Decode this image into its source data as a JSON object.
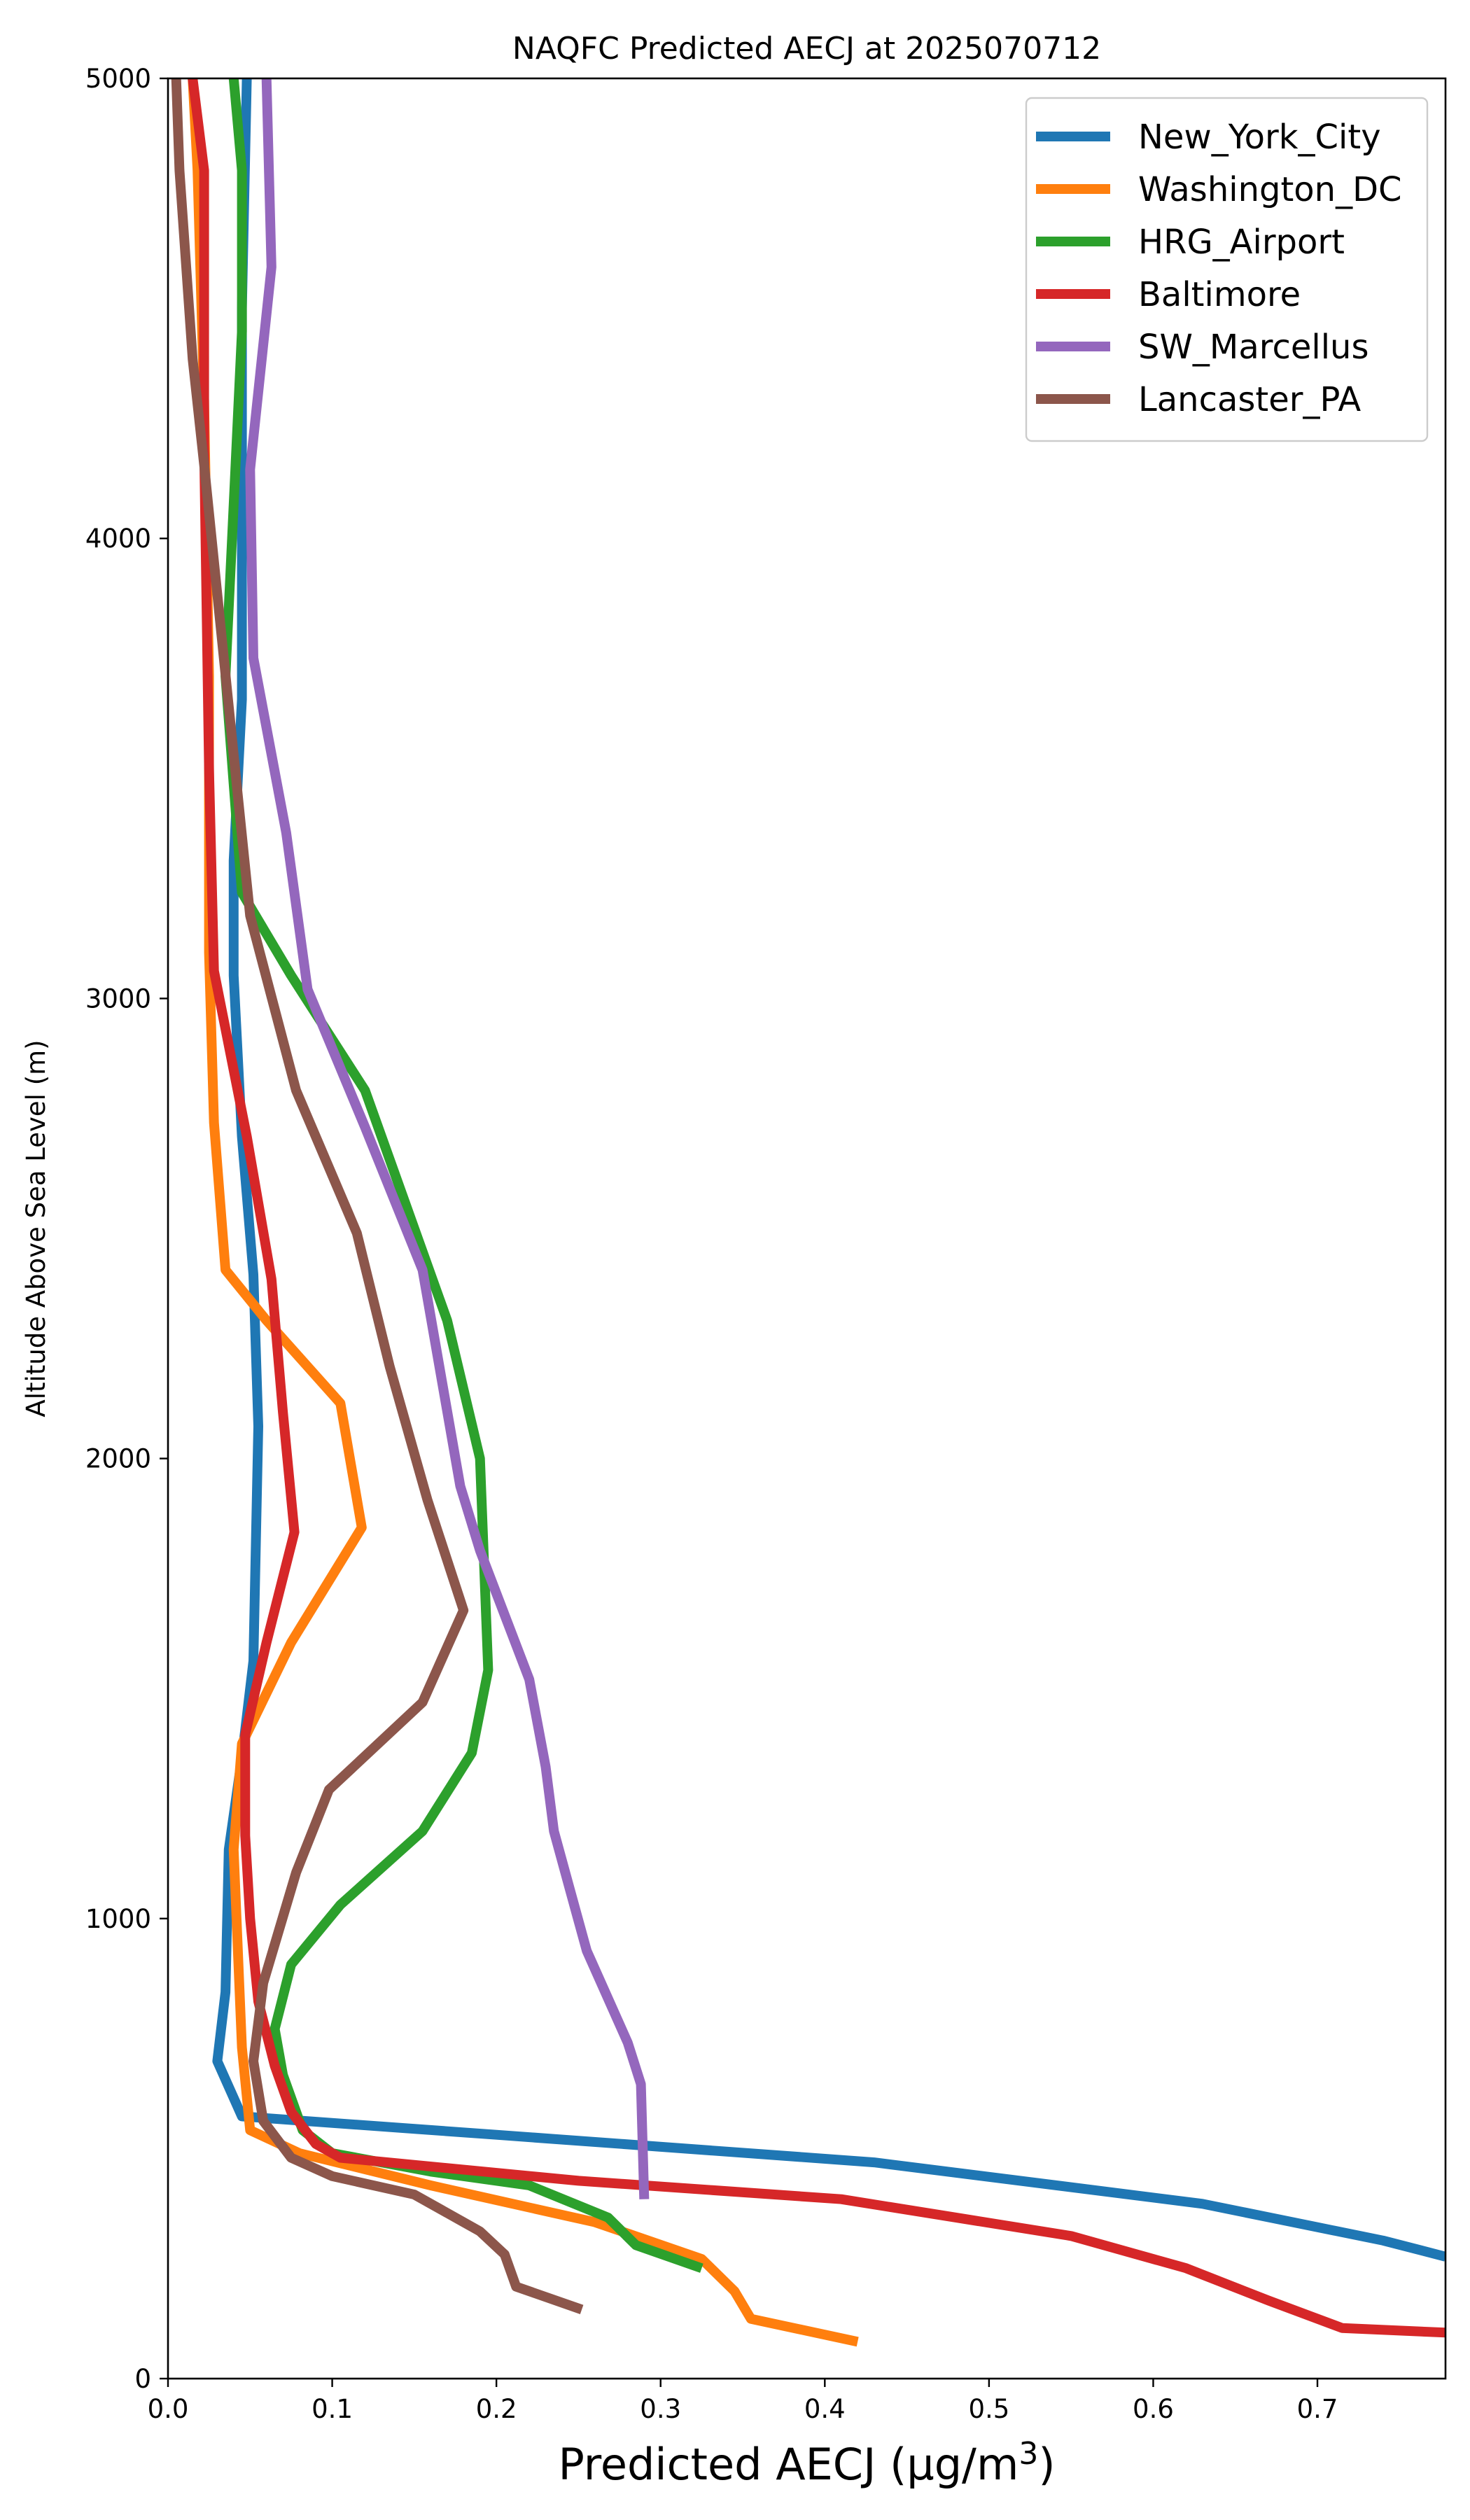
{
  "chart_data": {
    "type": "line",
    "title": "NAQFC Predicted AECJ at 2025070712",
    "xlabel": "Predicted AECJ (μg/m3)",
    "ylabel": "Altitude Above Sea Level (m)",
    "xlim": [
      0,
      0.778
    ],
    "ylim": [
      0,
      5000
    ],
    "xticks": [
      "0.0",
      "0.1",
      "0.2",
      "0.3",
      "0.4",
      "0.5",
      "0.6",
      "0.7"
    ],
    "yticks": [
      "0",
      "1000",
      "2000",
      "3000",
      "4000",
      "5000"
    ],
    "grid": false,
    "legend_position": "top-right",
    "series": [
      {
        "name": "New_York_City",
        "color": "#1f77b4",
        "points": [
          [
            0.778,
            265
          ],
          [
            0.74,
            300
          ],
          [
            0.63,
            380
          ],
          [
            0.43,
            470
          ],
          [
            0.2,
            530
          ],
          [
            0.045,
            570
          ],
          [
            0.03,
            690
          ],
          [
            0.035,
            840
          ],
          [
            0.037,
            1150
          ],
          [
            0.045,
            1350
          ],
          [
            0.052,
            1560
          ],
          [
            0.055,
            2070
          ],
          [
            0.052,
            2400
          ],
          [
            0.045,
            2700
          ],
          [
            0.04,
            3050
          ],
          [
            0.04,
            3300
          ],
          [
            0.045,
            3650
          ],
          [
            0.045,
            4100
          ],
          [
            0.045,
            4500
          ],
          [
            0.048,
            5000
          ]
        ]
      },
      {
        "name": "Washington_DC",
        "color": "#ff7f0e",
        "points": [
          [
            0.42,
            80
          ],
          [
            0.355,
            130
          ],
          [
            0.345,
            190
          ],
          [
            0.325,
            260
          ],
          [
            0.26,
            340
          ],
          [
            0.16,
            420
          ],
          [
            0.08,
            490
          ],
          [
            0.05,
            540
          ],
          [
            0.045,
            720
          ],
          [
            0.04,
            1150
          ],
          [
            0.045,
            1380
          ],
          [
            0.075,
            1600
          ],
          [
            0.118,
            1850
          ],
          [
            0.105,
            2120
          ],
          [
            0.06,
            2300
          ],
          [
            0.035,
            2410
          ],
          [
            0.028,
            2730
          ],
          [
            0.025,
            3100
          ],
          [
            0.025,
            3700
          ],
          [
            0.022,
            4300
          ],
          [
            0.018,
            4800
          ],
          [
            0.015,
            5000
          ]
        ]
      },
      {
        "name": "HRG_Airport",
        "color": "#2ca02c",
        "points": [
          [
            0.325,
            240
          ],
          [
            0.285,
            290
          ],
          [
            0.268,
            350
          ],
          [
            0.22,
            420
          ],
          [
            0.16,
            450
          ],
          [
            0.1,
            490
          ],
          [
            0.082,
            540
          ],
          [
            0.07,
            660
          ],
          [
            0.065,
            760
          ],
          [
            0.075,
            900
          ],
          [
            0.105,
            1030
          ],
          [
            0.155,
            1190
          ],
          [
            0.185,
            1360
          ],
          [
            0.195,
            1540
          ],
          [
            0.19,
            2000
          ],
          [
            0.17,
            2300
          ],
          [
            0.12,
            2800
          ],
          [
            0.075,
            3050
          ],
          [
            0.045,
            3230
          ],
          [
            0.035,
            3700
          ],
          [
            0.045,
            4450
          ],
          [
            0.045,
            4800
          ],
          [
            0.04,
            5000
          ]
        ]
      },
      {
        "name": "Baltimore",
        "color": "#d62728",
        "points": [
          [
            0.778,
            100
          ],
          [
            0.715,
            110
          ],
          [
            0.67,
            170
          ],
          [
            0.62,
            240
          ],
          [
            0.55,
            310
          ],
          [
            0.41,
            390
          ],
          [
            0.25,
            430
          ],
          [
            0.105,
            480
          ],
          [
            0.09,
            510
          ],
          [
            0.075,
            580
          ],
          [
            0.065,
            680
          ],
          [
            0.055,
            820
          ],
          [
            0.05,
            1000
          ],
          [
            0.047,
            1180
          ],
          [
            0.047,
            1400
          ],
          [
            0.06,
            1600
          ],
          [
            0.077,
            1840
          ],
          [
            0.07,
            2100
          ],
          [
            0.063,
            2390
          ],
          [
            0.048,
            2700
          ],
          [
            0.028,
            3060
          ],
          [
            0.025,
            3500
          ],
          [
            0.022,
            4200
          ],
          [
            0.022,
            4800
          ],
          [
            0.015,
            5000
          ]
        ]
      },
      {
        "name": "SW_Marcellus",
        "color": "#9467bd",
        "points": [
          [
            0.29,
            390
          ],
          [
            0.288,
            640
          ],
          [
            0.28,
            730
          ],
          [
            0.255,
            930
          ],
          [
            0.245,
            1060
          ],
          [
            0.235,
            1190
          ],
          [
            0.23,
            1330
          ],
          [
            0.22,
            1520
          ],
          [
            0.19,
            1800
          ],
          [
            0.178,
            1940
          ],
          [
            0.155,
            2410
          ],
          [
            0.12,
            2720
          ],
          [
            0.085,
            3020
          ],
          [
            0.072,
            3360
          ],
          [
            0.052,
            3740
          ],
          [
            0.05,
            4150
          ],
          [
            0.063,
            4590
          ],
          [
            0.06,
            5000
          ]
        ]
      },
      {
        "name": "Lancaster_PA",
        "color": "#8c564b",
        "points": [
          [
            0.252,
            150
          ],
          [
            0.212,
            200
          ],
          [
            0.205,
            270
          ],
          [
            0.19,
            320
          ],
          [
            0.15,
            400
          ],
          [
            0.1,
            440
          ],
          [
            0.075,
            480
          ],
          [
            0.058,
            560
          ],
          [
            0.052,
            690
          ],
          [
            0.058,
            860
          ],
          [
            0.078,
            1100
          ],
          [
            0.098,
            1280
          ],
          [
            0.155,
            1470
          ],
          [
            0.18,
            1670
          ],
          [
            0.158,
            1910
          ],
          [
            0.135,
            2200
          ],
          [
            0.115,
            2490
          ],
          [
            0.078,
            2800
          ],
          [
            0.05,
            3180
          ],
          [
            0.038,
            3600
          ],
          [
            0.022,
            4160
          ],
          [
            0.015,
            4390
          ],
          [
            0.007,
            4800
          ],
          [
            0.005,
            5000
          ]
        ]
      }
    ]
  }
}
